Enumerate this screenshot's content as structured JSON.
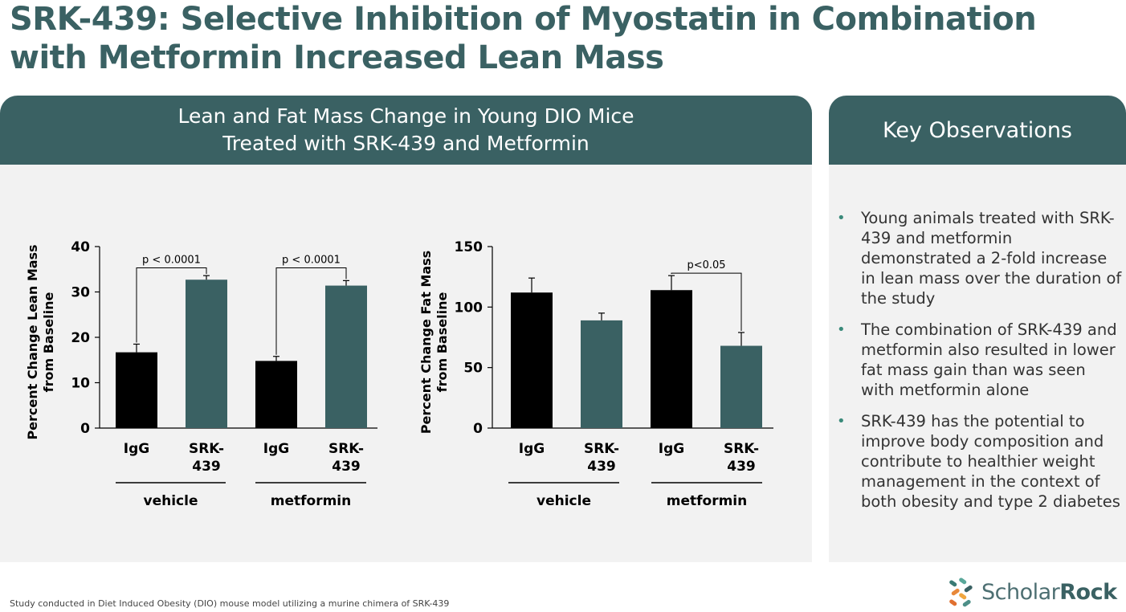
{
  "slide": {
    "title_line1": "SRK-439: Selective Inhibition of Myostatin in Combination",
    "title_line2": "with Metformin Increased Lean Mass",
    "footnote": "Study conducted in Diet Induced Obesity (DIO) mouse model utilizing a murine chimera of SRK-439"
  },
  "chart_panel": {
    "header_line1": "Lean and Fat Mass Change in Young DIO Mice",
    "header_line2": "Treated with SRK-439 and Metformin"
  },
  "observations": {
    "title": "Key Observations",
    "bullets": [
      "Young animals treated with SRK-439 and metformin demonstrated a 2-fold increase in lean mass over the duration of the study",
      "The combination of SRK-439 and metformin also resulted in lower fat mass gain than was seen with metformin alone",
      "SRK-439 has the potential to improve body composition and contribute to healthier weight management in the context of both obesity and type 2 diabetes"
    ]
  },
  "logo": {
    "part1": "Scholar",
    "part2": "Rock"
  },
  "colors": {
    "teal": "#3a6163",
    "black": "#000000",
    "panel_bg": "#f2f2f2",
    "bullet": "#3a8a7a"
  },
  "chart_data": [
    {
      "type": "bar",
      "ylabel_line1": "Percent Change Lean Mass",
      "ylabel_line2": "from Baseline",
      "ylim": [
        0,
        40
      ],
      "yticks": [
        0,
        10,
        20,
        30,
        40
      ],
      "categories": [
        "IgG",
        "SRK-439",
        "IgG",
        "SRK-439"
      ],
      "groups": [
        {
          "name": "vehicle",
          "categories": [
            0,
            1
          ]
        },
        {
          "name": "metformin",
          "categories": [
            2,
            3
          ]
        }
      ],
      "values": [
        16.7,
        32.7,
        14.8,
        31.4
      ],
      "errors": [
        1.8,
        0.9,
        1.0,
        1.1
      ],
      "bar_colors": [
        "#000000",
        "#3a6163",
        "#000000",
        "#3a6163"
      ],
      "annotations": [
        {
          "from": 0,
          "to": 1,
          "text": "p < 0.0001",
          "level": 38.5
        },
        {
          "from": 2,
          "to": 3,
          "text": "p < 0.0001",
          "level": 38.5
        }
      ]
    },
    {
      "type": "bar",
      "ylabel_line1": "Percent Change Fat Mass",
      "ylabel_line2": "from Baseline",
      "ylim": [
        0,
        150
      ],
      "yticks": [
        0,
        50,
        100,
        150
      ],
      "categories": [
        "IgG",
        "SRK-439",
        "IgG",
        "SRK-439"
      ],
      "groups": [
        {
          "name": "vehicle",
          "categories": [
            0,
            1
          ]
        },
        {
          "name": "metformin",
          "categories": [
            2,
            3
          ]
        }
      ],
      "values": [
        112,
        89,
        114,
        68
      ],
      "errors": [
        12,
        6,
        12,
        11
      ],
      "bar_colors": [
        "#000000",
        "#3a6163",
        "#000000",
        "#3a6163"
      ],
      "annotations": [
        {
          "from": 2,
          "to": 3,
          "text": "p<0.05",
          "level": 140
        }
      ]
    }
  ]
}
